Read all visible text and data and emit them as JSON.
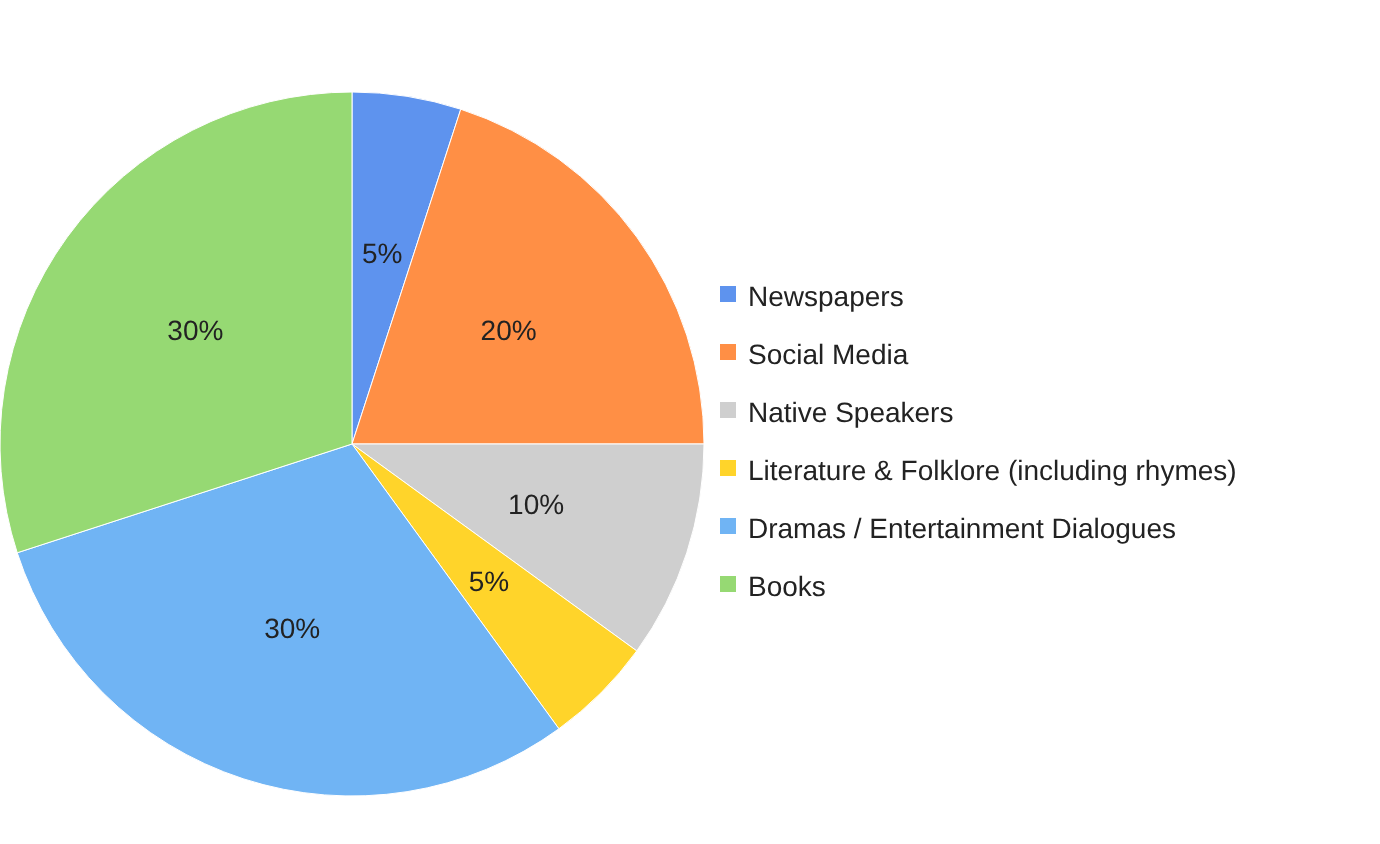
{
  "chart_data": {
    "type": "pie",
    "categories": [
      "Newspapers",
      "Social Media",
      "Native Speakers",
      "Literature & Folklore (including rhymes)",
      "Dramas / Entertainment Dialogues",
      "Books"
    ],
    "values": [
      5,
      20,
      10,
      5,
      30,
      30
    ],
    "colors": [
      "#5e93ee",
      "#ff8f45",
      "#cfcfcf",
      "#ffd42a",
      "#70b4f4",
      "#96d973"
    ],
    "value_labels": [
      "5%",
      "20%",
      "10%",
      "5%",
      "30%",
      "30%"
    ],
    "legend": "right"
  }
}
